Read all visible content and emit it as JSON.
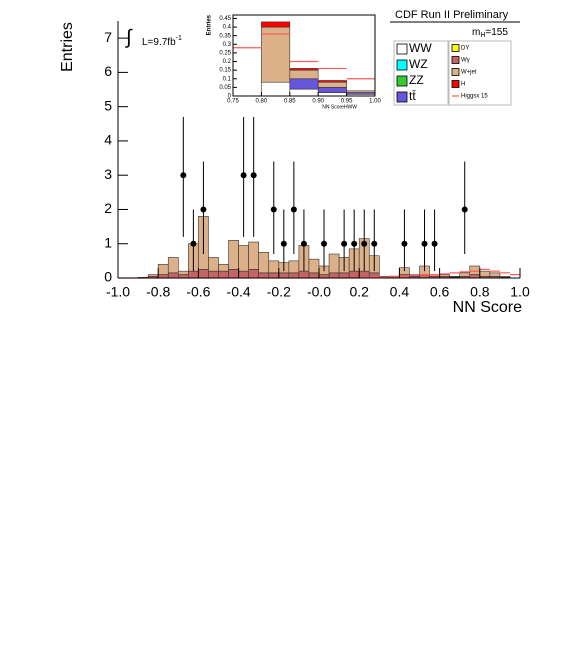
{
  "chart_data": [
    {
      "type": "histogram",
      "annotation": "CDF Run II Preliminary",
      "mass_symbol": "m",
      "mass_subscript": "H",
      "mass_value": "=155",
      "integral_sign": "∫",
      "lumi": "L=9.7fb",
      "lumi_exponent": "-1",
      "xlabel": "NN Score",
      "ylabel": "Entries",
      "xlim": [
        -1,
        1
      ],
      "ylim": [
        0,
        7.5
      ],
      "xticks": [
        {
          "value": -1,
          "label": "-1.0"
        },
        -0.8,
        -0.6,
        -0.4,
        -0.2,
        {
          "value": 0,
          "label": "-0.0"
        },
        0.2,
        0.4,
        0.6,
        0.8,
        {
          "value": 1,
          "label": "1.0"
        }
      ],
      "yticks": [
        0,
        1,
        2,
        3,
        4,
        5,
        6,
        7
      ],
      "legend": "upper right",
      "bins": [
        -1,
        -0.95,
        -0.9,
        -0.85,
        -0.8,
        -0.75,
        -0.7,
        -0.65,
        -0.6,
        -0.55,
        -0.5,
        -0.45,
        -0.4,
        -0.35,
        -0.3,
        -0.25,
        -0.2,
        -0.15,
        -0.1,
        -0.05,
        0,
        0.05,
        0.1,
        0.15,
        0.2,
        0.25,
        0.3,
        0.35,
        0.4,
        0.45,
        0.5,
        0.55,
        0.6,
        0.65,
        0.7,
        0.75,
        0.8,
        0.85,
        0.9,
        0.95,
        1
      ],
      "series": [
        {
          "name": "WW",
          "color": "#ffffff",
          "style": "bar",
          "values": [
            0,
            0,
            0,
            0,
            0,
            0,
            0,
            0,
            0,
            0,
            0,
            0,
            0,
            0,
            0,
            0,
            0,
            0,
            0,
            0,
            0,
            0,
            0,
            0,
            0,
            0,
            0,
            0,
            0,
            0,
            0,
            0,
            0,
            0,
            0,
            0,
            0,
            0,
            0,
            0
          ]
        },
        {
          "name": "WZ",
          "color": "#00ffff",
          "style": "bar",
          "values": [
            0,
            0,
            0,
            0,
            0,
            0,
            0,
            0,
            0,
            0,
            0,
            0,
            0,
            0,
            0,
            0,
            0,
            0,
            0,
            0,
            0,
            0,
            0,
            0,
            0,
            0,
            0,
            0,
            0,
            0,
            0,
            0,
            0,
            0,
            0,
            0,
            0,
            0,
            0,
            0
          ]
        },
        {
          "name": "ZZ",
          "color": "#33cc33",
          "style": "bar",
          "values": [
            0,
            0,
            0,
            0,
            0,
            0,
            0,
            0,
            0,
            0,
            0,
            0,
            0,
            0,
            0,
            0,
            0,
            0,
            0,
            0,
            0,
            0,
            0,
            0,
            0,
            0,
            0,
            0,
            0,
            0,
            0,
            0,
            0,
            0,
            0,
            0,
            0,
            0,
            0,
            0
          ]
        },
        {
          "name": "tt̄",
          "color": "#6655dd",
          "style": "bar",
          "values": [
            0,
            0,
            0,
            0,
            0,
            0,
            0,
            0,
            0,
            0,
            0,
            0,
            0,
            0,
            0,
            0,
            0,
            0,
            0,
            0,
            0,
            0,
            0,
            0,
            0,
            0,
            0,
            0,
            0,
            0,
            0,
            0,
            0,
            0,
            0,
            0,
            0,
            0,
            0,
            0
          ]
        },
        {
          "name": "DY",
          "color": "#ffff00",
          "style": "bar",
          "values": [
            0,
            0,
            0,
            0,
            0,
            0,
            0,
            0,
            0,
            0,
            0,
            0,
            0,
            0,
            0,
            0,
            0,
            0,
            0,
            0,
            0,
            0,
            0,
            0,
            0,
            0,
            0,
            0,
            0,
            0,
            0,
            0,
            0,
            0,
            0,
            0,
            0,
            0,
            0,
            0
          ]
        },
        {
          "name": "Wγ",
          "color": "#c46464",
          "style": "bar",
          "values": [
            0,
            0,
            0.02,
            0.05,
            0.1,
            0.15,
            0.1,
            0.2,
            0.25,
            0.2,
            0.2,
            0.25,
            0.2,
            0.25,
            0.15,
            0.15,
            0.15,
            0.15,
            0.2,
            0.15,
            0.1,
            0.15,
            0.15,
            0.2,
            0.2,
            0.15,
            0.05,
            0.05,
            0.1,
            0.05,
            0.1,
            0.05,
            0.05,
            0.03,
            0.05,
            0.1,
            0.05,
            0.05,
            0.02,
            0
          ]
        },
        {
          "name": "W+jet",
          "color": "#dcb088",
          "style": "bar",
          "values": [
            0,
            0,
            0,
            0.05,
            0.3,
            0.45,
            0.1,
            0.8,
            1.55,
            0.4,
            0.2,
            0.85,
            0.75,
            0.8,
            0.6,
            0.35,
            0.3,
            0.35,
            0.75,
            0.4,
            0.25,
            0.55,
            0.45,
            0.65,
            0.95,
            0.5,
            0,
            0,
            0.2,
            0.05,
            0.25,
            0.05,
            0.05,
            0.02,
            0.1,
            0.25,
            0.15,
            0.1,
            0.03,
            0
          ]
        },
        {
          "name": "H",
          "color": "#ff0000",
          "style": "bar",
          "values": [
            0,
            0,
            0,
            0,
            0,
            0,
            0,
            0,
            0,
            0,
            0,
            0,
            0,
            0,
            0,
            0,
            0,
            0,
            0,
            0,
            0,
            0,
            0,
            0,
            0,
            0,
            0,
            0,
            0,
            0,
            0,
            0,
            0,
            0,
            0,
            0,
            0,
            0,
            0,
            0
          ]
        },
        {
          "name": "Higgsx 15",
          "color": "#ff5a5a",
          "style": "step",
          "values": [
            0,
            0,
            0,
            0,
            0,
            0,
            0,
            0,
            0,
            0,
            0,
            0,
            0,
            0,
            0,
            0,
            0,
            0,
            0,
            0,
            0,
            0,
            0,
            0,
            0.01,
            0.02,
            0.03,
            0.05,
            0.05,
            0.08,
            0.1,
            0.1,
            0.12,
            0.15,
            0.18,
            0.2,
            0.25,
            0.2,
            0.15,
            0.1
          ]
        }
      ],
      "points": {
        "color": "#000000",
        "x": [
          -0.675,
          -0.625,
          -0.575,
          -0.375,
          -0.325,
          -0.225,
          -0.175,
          -0.125,
          -0.075,
          0.025,
          0.125,
          0.175,
          0.225,
          0.275,
          0.425,
          0.525,
          0.575,
          0.725
        ],
        "values": [
          3,
          1,
          2,
          3,
          3,
          2,
          1,
          2,
          1,
          1,
          1,
          1,
          1,
          1,
          1,
          1,
          1,
          2
        ],
        "err_low": [
          1.8,
          0.8,
          1.3,
          1.8,
          1.8,
          1.3,
          0.8,
          1.3,
          0.8,
          0.8,
          0.8,
          0.8,
          0.8,
          0.8,
          0.8,
          0.8,
          0.8,
          1.3
        ],
        "err_high": [
          1.7,
          1.0,
          1.4,
          1.7,
          1.7,
          1.4,
          1.0,
          1.4,
          1.0,
          1.0,
          1.0,
          1.0,
          1.0,
          1.0,
          1.0,
          1.0,
          1.0,
          1.4
        ]
      }
    },
    {
      "type": "histogram",
      "xlabel": "NN ScoreHWW",
      "ylabel": "Entries",
      "xlim": [
        0.75,
        1
      ],
      "ylim": [
        0,
        0.47
      ],
      "xticks": [
        0.75,
        {
          "value": 0.8,
          "label": "0.80"
        },
        0.85,
        {
          "value": 0.9,
          "label": "0.90"
        },
        0.95,
        {
          "value": 1,
          "label": "1.00"
        }
      ],
      "yticks": [
        0,
        0.05,
        0.1,
        0.15,
        0.2,
        0.25,
        0.3,
        0.35,
        0.4,
        0.45
      ],
      "bins": [
        0.75,
        0.8,
        0.85,
        0.9,
        0.95,
        1
      ],
      "series": [
        {
          "color": "#ffffff",
          "style": "bar",
          "values": [
            0,
            0.08,
            0.04,
            0.02,
            0.01
          ]
        },
        {
          "color": "#6655dd",
          "style": "bar",
          "values": [
            0,
            0,
            0.06,
            0.03,
            0.01
          ]
        },
        {
          "color": "#dcb088",
          "style": "bar",
          "values": [
            0,
            0.32,
            0.05,
            0.03,
            0.01
          ]
        },
        {
          "color": "#ff0000",
          "style": "bar",
          "values": [
            0,
            0.03,
            0.01,
            0.01,
            0
          ]
        },
        {
          "color": "#ff5a5a",
          "style": "step",
          "values": [
            0.28,
            0.36,
            0.2,
            0.16,
            0.1
          ]
        }
      ]
    }
  ]
}
